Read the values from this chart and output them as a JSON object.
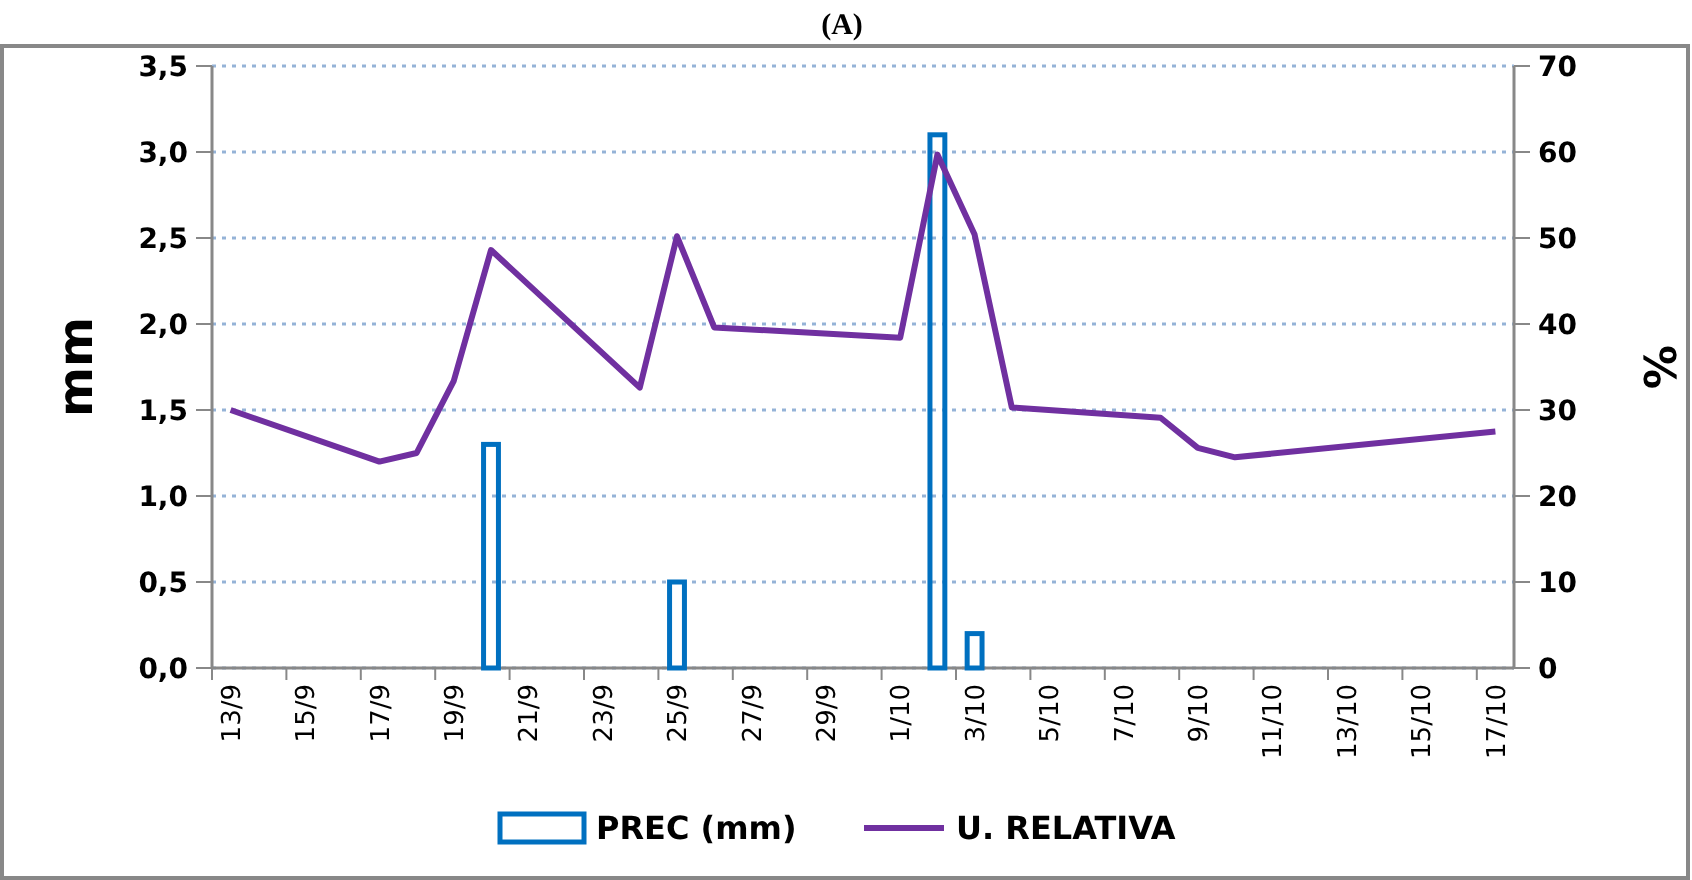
{
  "chart_data": {
    "type": "bar",
    "title": "(A)",
    "ylabel": "mm",
    "y2label": "%",
    "categories": [
      "13/9",
      null,
      "15/9",
      null,
      "17/9",
      null,
      "19/9",
      null,
      "21/9",
      null,
      "23/9",
      null,
      "25/9",
      null,
      "27/9",
      null,
      "29/9",
      null,
      "1/10",
      null,
      "3/10",
      null,
      "5/10",
      null,
      "7/10",
      null,
      "9/10",
      null,
      "11/10",
      null,
      "13/10",
      null,
      "15/10",
      null,
      "17/10"
    ],
    "series": [
      {
        "name": "PREC (mm)",
        "color": "#0070c0",
        "values": [
          null,
          null,
          null,
          null,
          null,
          null,
          null,
          1.3,
          null,
          null,
          null,
          null,
          0.5,
          null,
          null,
          null,
          null,
          null,
          null,
          3.1,
          0.2,
          null,
          null,
          null,
          null,
          null,
          null,
          null,
          null,
          null,
          null,
          null,
          null,
          null,
          null
        ]
      },
      {
        "name": "U. RELATIVA",
        "type": "line",
        "axis": "y2",
        "color": "#7030a0",
        "values": [
          30,
          null,
          null,
          null,
          24,
          25,
          33.4,
          48.6,
          null,
          null,
          null,
          32.6,
          50.2,
          39.6,
          null,
          null,
          null,
          null,
          38.4,
          59.7,
          50.4,
          30.3,
          null,
          null,
          null,
          29.1,
          25.6,
          24.5,
          null,
          null,
          null,
          null,
          null,
          null,
          27.5
        ]
      }
    ],
    "ylim": [
      0,
      3.5
    ],
    "yticks": [
      {
        "value": 0,
        "label": "0,0"
      },
      {
        "value": 0.5,
        "label": "0,5"
      },
      {
        "value": 1,
        "label": "1,0"
      },
      {
        "value": 1.5,
        "label": "1,5"
      },
      {
        "value": 2,
        "label": "2,0"
      },
      {
        "value": 2.5,
        "label": "2,5"
      },
      {
        "value": 3,
        "label": "3,0"
      },
      {
        "value": 3.5,
        "label": "3,5"
      }
    ],
    "y2lim": [
      0,
      70
    ],
    "y2ticks": [
      0,
      10,
      20,
      30,
      40,
      50,
      60,
      70
    ],
    "grid": "y",
    "legend": "bottom"
  }
}
